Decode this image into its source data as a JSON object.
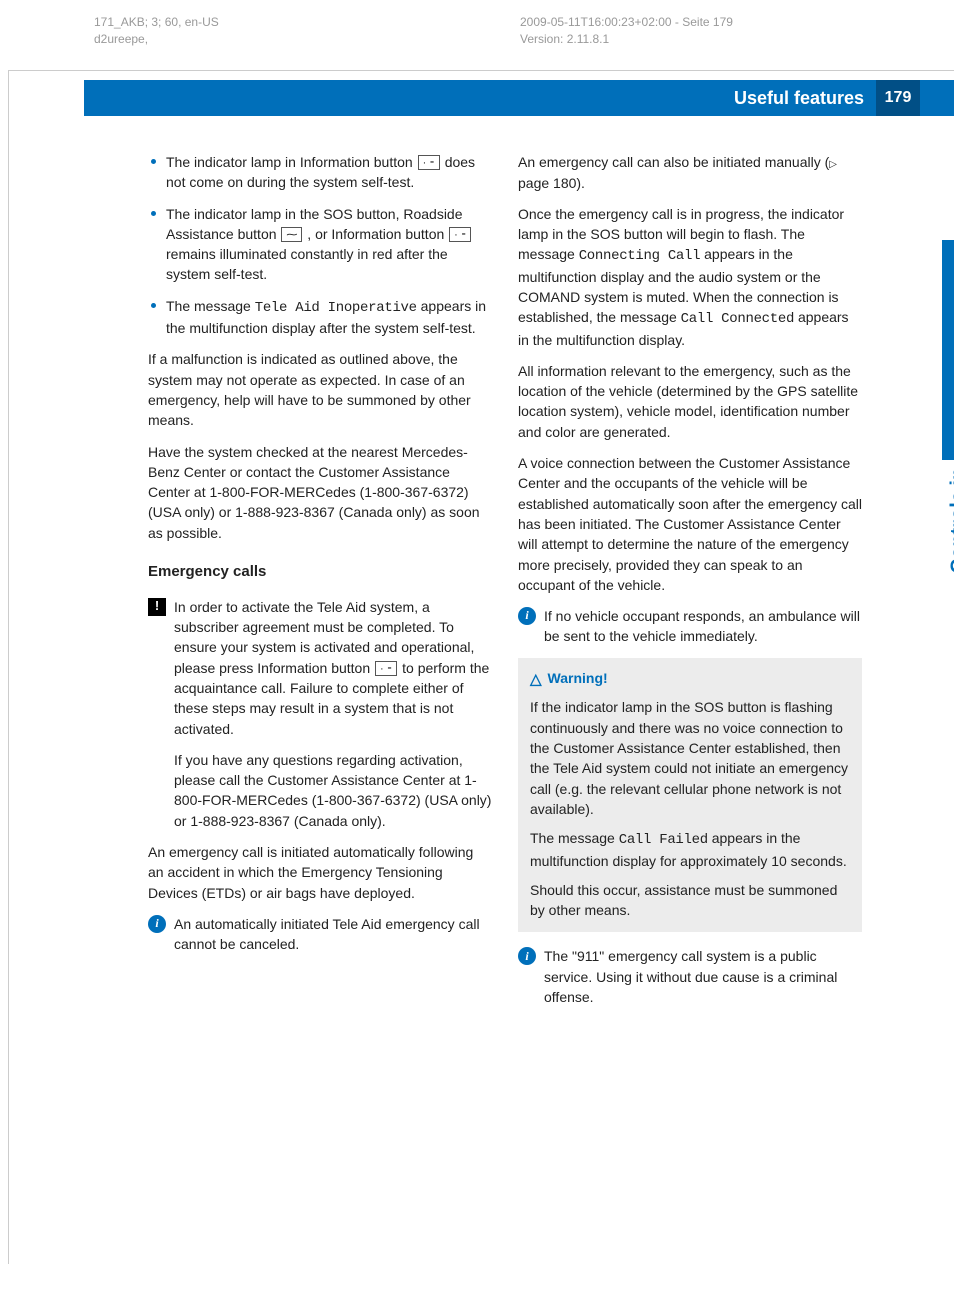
{
  "meta": {
    "left_line1": "171_AKB; 3; 60, en-US",
    "left_line2": "d2ureepe,",
    "right_line1": "2009-05-11T16:00:23+02:00 - Seite 179",
    "right_line2": "Version: 2.11.8.1"
  },
  "banner": {
    "title": "Useful features",
    "page": "179"
  },
  "sidetab": "Controls in detail",
  "col1": {
    "bullet1_a": "The indicator lamp in Information button ",
    "bullet1_b": " does not come on during the system self-test.",
    "bullet2_a": "The indicator lamp in the SOS button, Roadside Assistance button ",
    "bullet2_b": ", or Information button ",
    "bullet2_c": " remains illuminated constantly in red after the system self-test.",
    "bullet3_a": "The message ",
    "bullet3_msg": "Tele Aid Inoperative",
    "bullet3_b": " appears in the multifunction display after the system self-test.",
    "p1": "If a malfunction is indicated as outlined above, the system may not operate as expected. In case of an emergency, help will have to be summoned by other means.",
    "p2": "Have the system checked at the nearest Mercedes-Benz Center or contact the Customer Assistance Center at 1-800-FOR-MERCedes (1-800-367-6372) (USA only) or 1-888-923-8367 (Canada only) as soon as possible.",
    "subhead": "Emergency calls",
    "note1_a": "In order to activate the Tele Aid system, a subscriber agreement must be completed. To ensure your system is activated and operational, please press Information button ",
    "note1_b": " to perform the acquaintance call. Failure to complete either of these steps may result in a system that is not activated.",
    "note1_p2": "If you have any questions regarding activation, please call the Customer Assistance Center at 1-800-FOR-MERCedes (1-800-367-6372) (USA only) or 1-888-923-8367 (Canada only).",
    "p3": "An emergency call is initiated automatically following an accident in which the Emergency Tensioning Devices (ETDs) or air bags have deployed.",
    "info1": "An automatically initiated Tele Aid emergency call cannot be canceled."
  },
  "col2": {
    "p1_a": "An emergency call can also be initiated manually (",
    "p1_b": " page 180).",
    "p2_a": "Once the emergency call is in progress, the indicator lamp in the SOS button will begin to flash. The message ",
    "p2_msg1": "Connecting Call",
    "p2_b": " appears in the multifunction display and the audio system or the COMAND system is muted. When the connection is established, the message ",
    "p2_msg2": "Call Connected",
    "p2_c": " appears in the multifunction display.",
    "p3": "All information relevant to the emergency, such as the location of the vehicle (determined by the GPS satellite location system), vehicle model, identification number and color are generated.",
    "p4": "A voice connection between the Customer Assistance Center and the occupants of the vehicle will be established automatically soon after the emergency call has been initiated. The Customer Assistance Center will attempt to determine the nature of the emergency more precisely, provided they can speak to an occupant of the vehicle.",
    "info1": "If no vehicle occupant responds, an ambulance will be sent to the vehicle immediately.",
    "warn_title": "Warning!",
    "warn_p1": "If the indicator lamp in the SOS button is flashing continuously and there was no voice connection to the Customer Assistance Center established, then the Tele Aid system could not initiate an emergency call (e.g. the relevant cellular phone network is not available).",
    "warn_p2_a": "The message ",
    "warn_p2_msg": "Call Failed",
    "warn_p2_b": " appears in the multifunction display for approximately 10 seconds.",
    "warn_p3": "Should this occur, assistance must be summoned by other means.",
    "info2": "The \"911\" emergency call system is a public service. Using it without due cause is a criminal offense."
  },
  "icons": {
    "info_btn": "ℹ ⁃",
    "wrench_btn": "✓⁃"
  }
}
